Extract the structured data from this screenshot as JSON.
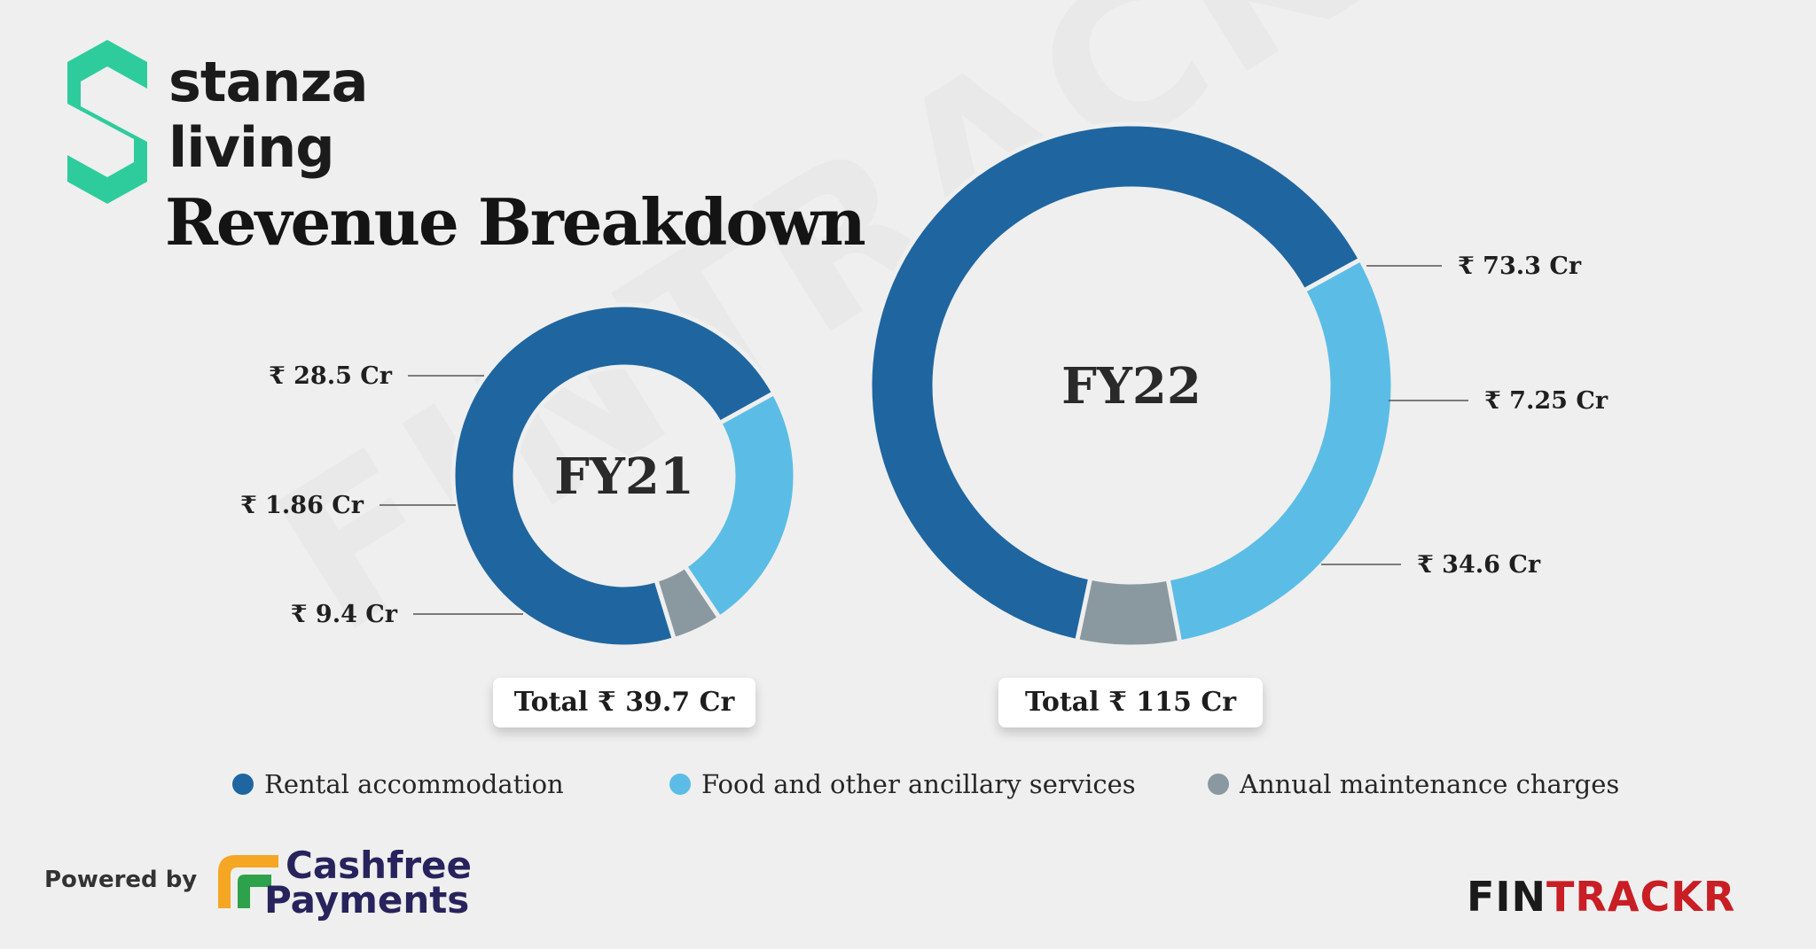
{
  "brand": {
    "line1": "stanza",
    "line2": "living",
    "logo_color": "#2ecc9c"
  },
  "title": "Revenue Breakdown",
  "watermark": "FINTRACKR",
  "chart_data": [
    {
      "type": "pie",
      "donut": true,
      "center_label": "FY21",
      "total_label": "Total ₹ 39.7 Cr",
      "slices": [
        {
          "category": "Rental accommodation",
          "value": 28.5,
          "label": "₹ 28.5 Cr",
          "color": "#1f66a0"
        },
        {
          "category": "Food and other ancillary services",
          "value": 9.4,
          "label": "₹ 9.4 Cr",
          "color": "#5bbde6"
        },
        {
          "category": "Annual maintenance charges",
          "value": 1.86,
          "label": "₹ 1.86 Cr",
          "color": "#8a999f"
        }
      ]
    },
    {
      "type": "pie",
      "donut": true,
      "center_label": "FY22",
      "total_label": "Total ₹ 115 Cr",
      "slices": [
        {
          "category": "Rental accommodation",
          "value": 73.3,
          "label": "₹ 73.3 Cr",
          "color": "#1f66a0"
        },
        {
          "category": "Food and other ancillary services",
          "value": 34.6,
          "label": "₹ 34.6 Cr",
          "color": "#5bbde6"
        },
        {
          "category": "Annual maintenance charges",
          "value": 7.25,
          "label": "₹ 7.25 Cr",
          "color": "#8a999f"
        }
      ]
    }
  ],
  "legend": [
    {
      "label": "Rental accommodation",
      "color": "#1f66a0"
    },
    {
      "label": "Food and other ancillary services",
      "color": "#5bbde6"
    },
    {
      "label": "Annual maintenance charges",
      "color": "#8a999f"
    }
  ],
  "footer": {
    "powered_by": "Powered by",
    "cashfree_line1": "Cashfree",
    "cashfree_line2": "Payments",
    "fintrackr_fin": "FIN",
    "fintrackr_trackr": "TRACKR"
  }
}
